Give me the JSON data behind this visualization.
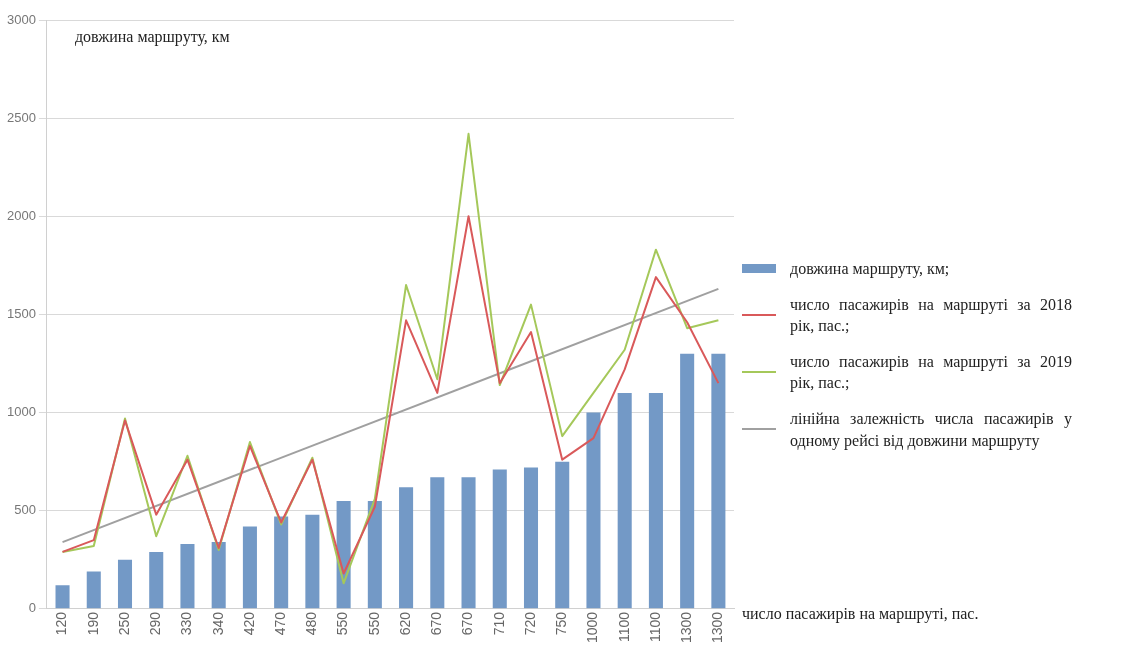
{
  "chart_data": {
    "type": "bar",
    "ylabel": "довжина маршруту, км",
    "xlabel": "число пасажирів на маршруті, пас.",
    "categories": [
      "120",
      "190",
      "250",
      "290",
      "330",
      "340",
      "420",
      "470",
      "480",
      "550",
      "550",
      "620",
      "670",
      "670",
      "710",
      "720",
      "750",
      "1000",
      "1100",
      "1100",
      "1300",
      "1300"
    ],
    "series": [
      {
        "name": "довжина маршруту, км;",
        "color": "#7399c6",
        "values": [
          120,
          190,
          250,
          290,
          330,
          340,
          420,
          470,
          480,
          550,
          550,
          620,
          670,
          670,
          710,
          720,
          750,
          1000,
          1100,
          1100,
          1300,
          1300
        ]
      },
      {
        "name": "число пасажирів на маршруті за 2018  рік, пас.;",
        "type": "line",
        "color": "#d9595a",
        "values": [
          290,
          350,
          960,
          480,
          760,
          310,
          830,
          440,
          760,
          180,
          520,
          1470,
          1100,
          2000,
          1150,
          1410,
          760,
          870,
          1220,
          1690,
          1460,
          1150
        ]
      },
      {
        "name": "число пасажирів на маршруті за 2019  рік, пас.;",
        "type": "line",
        "color": "#a5c85a",
        "values": [
          290,
          320,
          970,
          370,
          780,
          300,
          850,
          430,
          770,
          130,
          560,
          1650,
          1170,
          2420,
          1140,
          1550,
          880,
          1100,
          1320,
          1830,
          1430,
          1470
        ]
      },
      {
        "name": "лінійна залежність числа пасажирів у одному рейсі від довжини маршруту",
        "type": "line",
        "color": "#a0a0a0",
        "values": [
          340,
          null,
          null,
          null,
          null,
          null,
          null,
          null,
          null,
          null,
          null,
          null,
          null,
          null,
          null,
          null,
          null,
          null,
          null,
          null,
          null,
          1630
        ]
      }
    ],
    "ylim": [
      0,
      3000
    ],
    "yticks": [
      0,
      500,
      1000,
      1500,
      2000,
      2500,
      3000
    ],
    "grid": "y",
    "legend": "right",
    "marker": "none",
    "line_style": "solid"
  }
}
